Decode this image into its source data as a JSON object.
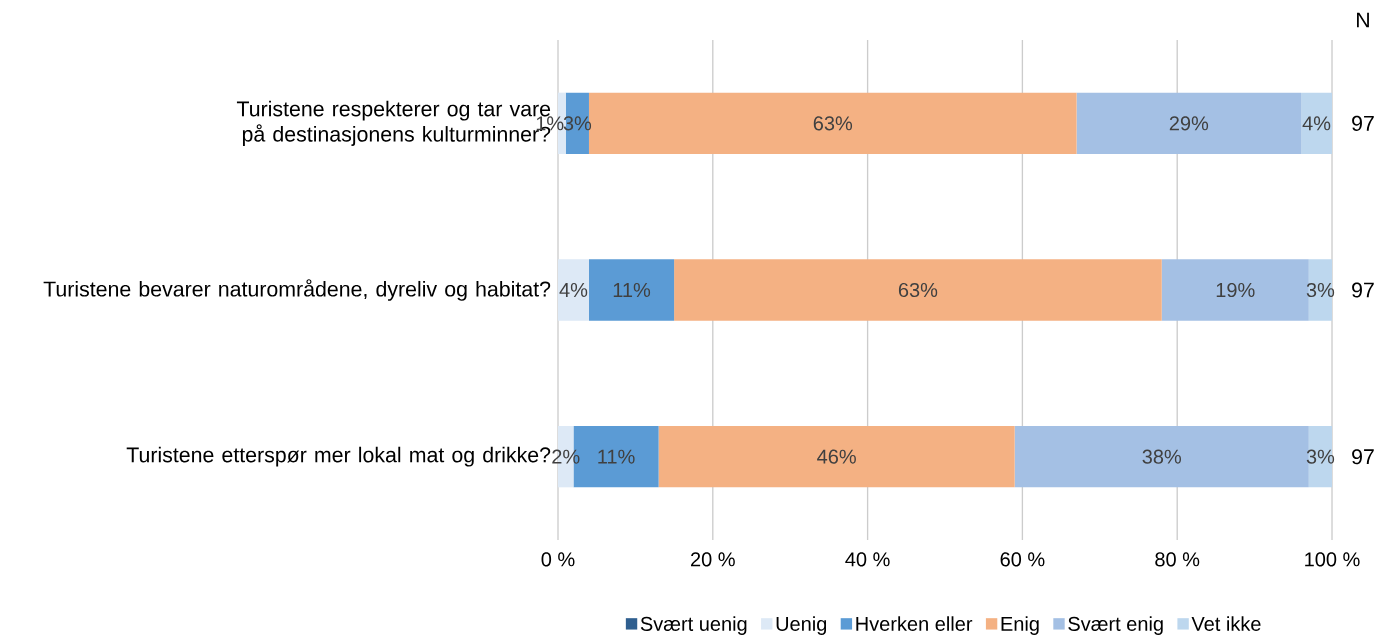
{
  "chart_data": {
    "type": "bar",
    "orientation": "horizontal",
    "stacked": true,
    "categories": [
      "Turistene respekterer og tar vare på destinasjonens kulturminner?",
      "Turistene bevarer naturområdene, dyreliv og habitat?",
      "Turistene etterspør mer lokal mat og drikke?"
    ],
    "series": [
      {
        "name": "Svært uenig",
        "color": "#2f5f8f",
        "values": [
          0,
          0,
          0
        ],
        "value_labels": [
          null,
          null,
          null
        ]
      },
      {
        "name": "Uenig",
        "color": "#dde9f6",
        "values": [
          1,
          4,
          2
        ],
        "value_labels": [
          "1%",
          "4%",
          "2%"
        ]
      },
      {
        "name": "Hverken eller",
        "color": "#5b9bd5",
        "values": [
          3,
          11,
          11
        ],
        "value_labels": [
          "3%",
          "11%",
          "11%"
        ]
      },
      {
        "name": "Enig",
        "color": "#f4b183",
        "values": [
          63,
          63,
          46
        ],
        "value_labels": [
          "63%",
          "63%",
          "46%"
        ]
      },
      {
        "name": "Svært enig",
        "color": "#a4c0e4",
        "values": [
          29,
          19,
          38
        ],
        "value_labels": [
          "29%",
          "19%",
          "38%"
        ]
      },
      {
        "name": "Vet ikke",
        "color": "#bdd7ee",
        "values": [
          4,
          3,
          3
        ],
        "value_labels": [
          "4%",
          "3%",
          "3%"
        ]
      }
    ],
    "xlim": [
      0,
      100
    ],
    "xticks": [
      {
        "value": 0,
        "label": "0 %"
      },
      {
        "value": 20,
        "label": "20 %"
      },
      {
        "value": 40,
        "label": "40 %"
      },
      {
        "value": 60,
        "label": "60 %"
      },
      {
        "value": 80,
        "label": "80 %"
      },
      {
        "value": 100,
        "label": "100 %"
      }
    ],
    "grid": "x",
    "legend": "bottom",
    "annotations": [
      "N",
      "97",
      "97",
      "97"
    ]
  }
}
